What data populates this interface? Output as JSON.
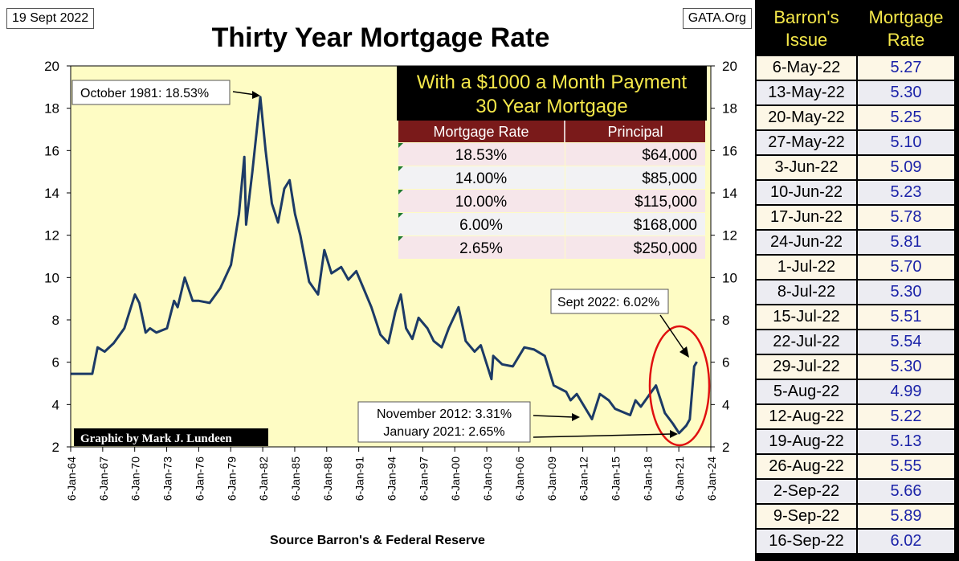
{
  "header": {
    "date": "19 Sept 2022",
    "site": "GATA.Org",
    "title": "Thirty Year Mortgage Rate",
    "credit": "Graphic by Mark J. Lundeen",
    "source": "Source Barron's & Federal Reserve"
  },
  "inset_table": {
    "title_line1": "With a $1000 a Month Payment",
    "title_line2": "30 Year Mortgage",
    "col_rate": "Mortgage Rate",
    "col_principal": "Principal",
    "rows": [
      {
        "rate": "18.53%",
        "principal": "$64,000"
      },
      {
        "rate": "14.00%",
        "principal": "$85,000"
      },
      {
        "rate": "10.00%",
        "principal": "$115,000"
      },
      {
        "rate": "6.00%",
        "principal": "$168,000"
      },
      {
        "rate": "2.65%",
        "principal": "$250,000"
      }
    ]
  },
  "annotations": {
    "peak": "October 1981: 18.53%",
    "current": "Sept 2022: 6.02%",
    "low1": "November 2012: 3.31%",
    "low2": "January 2021: 2.65%"
  },
  "colors": {
    "plot_bg": "#fefcc4",
    "line": "#1c3a66",
    "inset_title_bg": "#000000",
    "inset_title_text": "#f5e84a",
    "inset_header_bg": "#7a1a1a",
    "circle": "#e01010",
    "table_head_text": "#f5e84a",
    "table_rate_text": "#1a22a8"
  },
  "right_table": {
    "col1_header_line1": "Barron's",
    "col1_header_line2": "Issue",
    "col2_header_line1": "Mortgage",
    "col2_header_line2": "Rate",
    "rows": [
      {
        "issue": "6-May-22",
        "rate": "5.27"
      },
      {
        "issue": "13-May-22",
        "rate": "5.30"
      },
      {
        "issue": "20-May-22",
        "rate": "5.25"
      },
      {
        "issue": "27-May-22",
        "rate": "5.10"
      },
      {
        "issue": "3-Jun-22",
        "rate": "5.09"
      },
      {
        "issue": "10-Jun-22",
        "rate": "5.23"
      },
      {
        "issue": "17-Jun-22",
        "rate": "5.78"
      },
      {
        "issue": "24-Jun-22",
        "rate": "5.81"
      },
      {
        "issue": "1-Jul-22",
        "rate": "5.70"
      },
      {
        "issue": "8-Jul-22",
        "rate": "5.30"
      },
      {
        "issue": "15-Jul-22",
        "rate": "5.51"
      },
      {
        "issue": "22-Jul-22",
        "rate": "5.54"
      },
      {
        "issue": "29-Jul-22",
        "rate": "5.30"
      },
      {
        "issue": "5-Aug-22",
        "rate": "4.99"
      },
      {
        "issue": "12-Aug-22",
        "rate": "5.22"
      },
      {
        "issue": "19-Aug-22",
        "rate": "5.13"
      },
      {
        "issue": "26-Aug-22",
        "rate": "5.55"
      },
      {
        "issue": "2-Sep-22",
        "rate": "5.66"
      },
      {
        "issue": "9-Sep-22",
        "rate": "5.89"
      },
      {
        "issue": "16-Sep-22",
        "rate": "6.02"
      }
    ]
  },
  "chart_data": {
    "type": "line",
    "title": "Thirty Year Mortgage Rate",
    "xlabel": "",
    "ylabel": "",
    "xlim": [
      "1964-01-06",
      "2024-01-06"
    ],
    "ylim": [
      2,
      20
    ],
    "grid": false,
    "x_ticks": [
      "6-Jan-64",
      "6-Jan-67",
      "6-Jan-70",
      "6-Jan-73",
      "6-Jan-76",
      "6-Jan-79",
      "6-Jan-82",
      "6-Jan-85",
      "6-Jan-88",
      "6-Jan-91",
      "6-Jan-94",
      "6-Jan-97",
      "6-Jan-00",
      "6-Jan-03",
      "6-Jan-06",
      "6-Jan-09",
      "6-Jan-12",
      "6-Jan-15",
      "6-Jan-18",
      "6-Jan-21",
      "6-Jan-24"
    ],
    "y_ticks": [
      "2",
      "4",
      "6",
      "8",
      "10",
      "12",
      "14",
      "16",
      "18",
      "20"
    ],
    "series": [
      {
        "x": [
          "1964-01",
          "1966-01",
          "1966-07",
          "1967-03",
          "1968-01",
          "1969-01",
          "1970-01",
          "1970-06",
          "1971-01",
          "1971-06",
          "1972-01",
          "1973-01",
          "1973-09",
          "1974-01",
          "1974-09",
          "1975-06",
          "1976-01",
          "1977-01",
          "1978-01",
          "1979-01",
          "1979-10",
          "1980-04",
          "1980-06",
          "1981-01",
          "1981-10",
          "1982-04",
          "1982-11",
          "1983-06",
          "1984-01",
          "1984-07",
          "1985-01",
          "1985-07",
          "1986-05",
          "1987-03",
          "1987-10",
          "1988-06",
          "1989-05",
          "1990-01",
          "1990-10",
          "1991-06",
          "1992-03",
          "1993-01",
          "1993-10",
          "1994-06",
          "1994-12",
          "1995-06",
          "1996-01",
          "1996-08",
          "1997-06",
          "1998-01",
          "1998-10",
          "1999-06",
          "2000-05",
          "2001-01",
          "2001-11",
          "2002-06",
          "2003-06",
          "2003-08",
          "2004-06",
          "2005-06",
          "2006-07",
          "2007-06",
          "2008-06",
          "2009-04",
          "2010-06",
          "2010-11",
          "2011-06",
          "2012-11",
          "2013-08",
          "2014-06",
          "2015-01",
          "2016-06",
          "2016-12",
          "2017-06",
          "2018-11",
          "2019-09",
          "2020-06",
          "2021-01",
          "2021-09",
          "2022-01",
          "2022-06",
          "2022-09"
        ],
        "values": [
          5.45,
          5.45,
          6.7,
          6.5,
          6.9,
          7.6,
          9.2,
          8.8,
          7.4,
          7.6,
          7.4,
          7.6,
          8.9,
          8.6,
          10.0,
          8.9,
          8.9,
          8.8,
          9.5,
          10.6,
          13.0,
          15.7,
          12.5,
          15.0,
          18.53,
          16.0,
          13.5,
          12.6,
          14.2,
          14.6,
          13.0,
          12.0,
          9.8,
          9.2,
          11.3,
          10.2,
          10.5,
          9.9,
          10.3,
          9.5,
          8.6,
          7.3,
          6.9,
          8.4,
          9.2,
          7.6,
          7.1,
          8.1,
          7.6,
          7.0,
          6.7,
          7.6,
          8.6,
          7.0,
          6.5,
          6.8,
          5.2,
          6.3,
          5.9,
          5.8,
          6.7,
          6.6,
          6.3,
          4.9,
          4.6,
          4.2,
          4.5,
          3.31,
          4.5,
          4.2,
          3.8,
          3.5,
          4.2,
          3.9,
          4.9,
          3.6,
          3.1,
          2.65,
          3.0,
          3.3,
          5.8,
          6.02
        ]
      }
    ]
  }
}
